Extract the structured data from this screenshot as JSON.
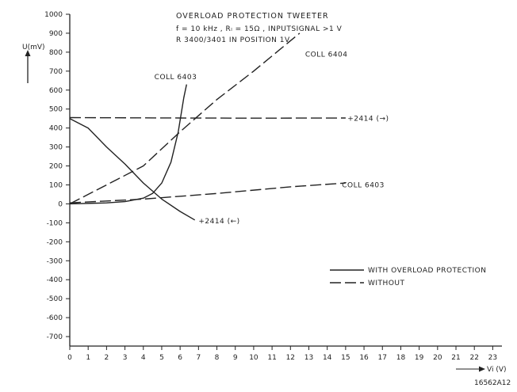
{
  "chart_data": {
    "type": "line",
    "title_lines": [
      "OVERLOAD  PROTECTION  TWEETER",
      "f = 10 kHz ,  Rₗ = 15Ω ,  INPUTSIGNAL  >1 V",
      "R 3400/3401  IN POSITION  1V"
    ],
    "ylabel": "U(mV)",
    "xlabel": "Vi  (V)",
    "figure_id": "16562A12",
    "ylim": [
      -750,
      1000
    ],
    "xlim": [
      0,
      23.5
    ],
    "y_ticks": [
      1000,
      900,
      800,
      700,
      600,
      500,
      400,
      300,
      200,
      100,
      0,
      -100,
      -200,
      -300,
      -400,
      -500,
      -600,
      -700
    ],
    "y_tick_labels": [
      "1000",
      "900",
      "800",
      "700",
      "600",
      "500",
      "400",
      "300",
      "200",
      "100",
      "0",
      "-100",
      "-200",
      "-300",
      "-400",
      "-500",
      "-600",
      "-700"
    ],
    "x_ticks": [
      0,
      1,
      2,
      3,
      4,
      5,
      6,
      7,
      8,
      9,
      10,
      11,
      12,
      13,
      14,
      15,
      16,
      17,
      18,
      19,
      20,
      21,
      22,
      23
    ],
    "x_tick_labels": [
      "0",
      "1",
      "2",
      "3",
      "4",
      "5",
      "6",
      "7",
      "8",
      "9",
      "10",
      "11",
      "12",
      "13",
      "14",
      "15",
      "16",
      "17",
      "18",
      "19",
      "20",
      "21",
      "22",
      "23"
    ],
    "series": [
      {
        "name": "COLL 6404",
        "style": "dashed",
        "points": [
          [
            0,
            0
          ],
          [
            2,
            100
          ],
          [
            4,
            200
          ],
          [
            6,
            380
          ],
          [
            8,
            550
          ],
          [
            10,
            700
          ],
          [
            12.5,
            900
          ]
        ]
      },
      {
        "name": "+2414 (→)",
        "style": "dashed",
        "points": [
          [
            0,
            455
          ],
          [
            6,
            453
          ],
          [
            10,
            452
          ],
          [
            15,
            453
          ]
        ]
      },
      {
        "name": "COLL 6403",
        "style": "dashed",
        "points": [
          [
            0,
            5
          ],
          [
            4,
            25
          ],
          [
            8,
            55
          ],
          [
            12,
            90
          ],
          [
            15,
            110
          ]
        ]
      },
      {
        "name": "COLL 6403",
        "style": "solid",
        "points": [
          [
            0,
            0
          ],
          [
            2,
            5
          ],
          [
            3,
            12
          ],
          [
            4,
            30
          ],
          [
            4.5,
            55
          ],
          [
            5,
            110
          ],
          [
            5.5,
            220
          ],
          [
            5.9,
            380
          ],
          [
            6.2,
            560
          ],
          [
            6.35,
            630
          ]
        ]
      },
      {
        "name": "+2414 (←)",
        "style": "solid",
        "points": [
          [
            0,
            450
          ],
          [
            1,
            400
          ],
          [
            2,
            300
          ],
          [
            3,
            210
          ],
          [
            4,
            110
          ],
          [
            5,
            25
          ],
          [
            6,
            -40
          ],
          [
            6.8,
            -85
          ]
        ]
      }
    ],
    "legend": {
      "position": "bottom-right",
      "entries": [
        {
          "label": "WITH OVERLOAD  PROTECTION",
          "style": "solid"
        },
        {
          "label": "WITHOUT",
          "style": "dashed"
        }
      ]
    },
    "annotations": [
      {
        "text": "COLL 6404",
        "x": 12.8,
        "y": 790
      },
      {
        "text": "COLL 6403",
        "x": 4.6,
        "y": 670
      },
      {
        "text": "+2414 (→)",
        "x": 15.1,
        "y": 450
      },
      {
        "text": "COLL 6403",
        "x": 14.8,
        "y": 100
      },
      {
        "text": "+2414 (←)",
        "x": 7.0,
        "y": -90
      }
    ]
  }
}
